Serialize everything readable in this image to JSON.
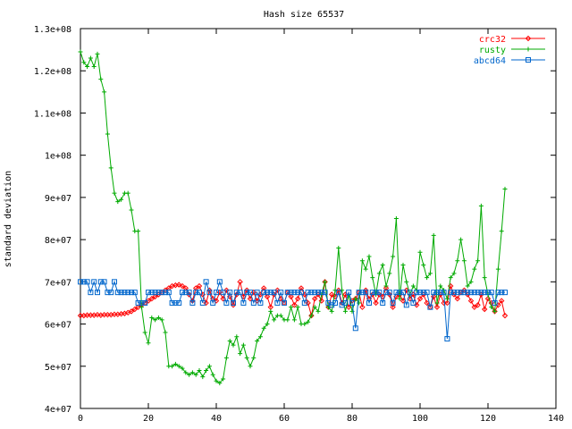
{
  "chart_data": {
    "type": "line",
    "title": "Hash size 65537",
    "xlabel": "",
    "ylabel": "standard deviation",
    "xlim": [
      0,
      140
    ],
    "ylim": [
      40000000,
      130000000
    ],
    "x_ticks": [
      0,
      20,
      40,
      60,
      80,
      100,
      120,
      140
    ],
    "x_tick_labels": [
      "0",
      "20",
      "40",
      "60",
      "80",
      "100",
      "120",
      "140"
    ],
    "y_ticks": [
      40000000,
      50000000,
      60000000,
      70000000,
      80000000,
      90000000,
      100000000,
      110000000,
      120000000,
      130000000
    ],
    "y_tick_labels": [
      "4e+07",
      "5e+07",
      "6e+07",
      "7e+07",
      "8e+07",
      "9e+07",
      "1e+08",
      "1.1e+08",
      "1.2e+08",
      "1.3e+08"
    ],
    "grid": false,
    "legend_position": "top-right",
    "series": [
      {
        "name": "crc32",
        "color": "#ff0000",
        "marker": "diamond",
        "x_start": 0,
        "values": [
          62.0,
          62.0,
          62.1,
          62.1,
          62.1,
          62.2,
          62.1,
          62.2,
          62.2,
          62.2,
          62.3,
          62.3,
          62.4,
          62.5,
          62.7,
          63.0,
          63.5,
          64.0,
          64.5,
          65.0,
          65.5,
          66.0,
          66.5,
          67.0,
          67.5,
          68.0,
          68.5,
          69.0,
          69.2,
          69.3,
          69.0,
          68.5,
          67.0,
          65.5,
          68.5,
          69.0,
          67.0,
          65.0,
          68.0,
          66.0,
          65.5,
          67.5,
          66.0,
          68.0,
          66.5,
          64.5,
          67.0,
          70.0,
          66.5,
          68.0,
          66.0,
          67.5,
          65.5,
          67.0,
          68.5,
          66.5,
          64.0,
          67.0,
          68.0,
          66.0,
          65.0,
          67.5,
          66.5,
          64.5,
          66.0,
          68.5,
          67.0,
          65.0,
          62.0,
          66.0,
          67.0,
          65.5,
          70.0,
          64.0,
          67.0,
          66.5,
          68.0,
          65.0,
          67.0,
          64.0,
          65.5,
          66.0,
          67.5,
          64.0,
          68.0,
          66.0,
          67.0,
          65.0,
          67.0,
          66.5,
          68.5,
          67.0,
          64.0,
          66.5,
          67.0,
          65.5,
          68.0,
          66.0,
          67.0,
          64.5,
          66.0,
          67.0,
          65.0,
          64.0,
          66.5,
          64.0,
          67.0,
          65.0,
          65.0,
          69.0,
          67.0,
          66.0,
          67.5,
          68.0,
          67.0,
          65.5,
          64.0,
          64.5,
          67.0,
          63.5,
          66.0,
          65.0,
          63.0,
          64.5,
          65.5,
          62.0
        ]
      },
      {
        "name": "rusty",
        "color": "#00aa00",
        "marker": "plus",
        "x_start": 0,
        "values": [
          124.5,
          122.0,
          121.0,
          123.0,
          121.0,
          124.0,
          118.0,
          115.0,
          105.0,
          97.0,
          91.0,
          89.0,
          89.5,
          91.0,
          91.0,
          87.0,
          82.0,
          82.0,
          64.0,
          58.0,
          55.5,
          61.5,
          61.0,
          61.5,
          61.0,
          58.0,
          50.0,
          50.0,
          50.5,
          50.0,
          49.5,
          48.5,
          48.0,
          48.5,
          48.0,
          49.0,
          47.5,
          49.0,
          50.0,
          48.0,
          46.5,
          46.0,
          47.0,
          52.0,
          56.0,
          55.0,
          57.0,
          53.0,
          55.0,
          52.0,
          50.0,
          52.0,
          56.0,
          57.0,
          59.0,
          60.0,
          63.0,
          61.0,
          62.0,
          62.0,
          61.0,
          61.0,
          64.0,
          61.0,
          64.0,
          60.0,
          60.0,
          60.5,
          62.0,
          64.0,
          63.0,
          67.0,
          70.0,
          64.0,
          63.0,
          68.0,
          78.0,
          68.0,
          63.0,
          67.0,
          63.0,
          66.0,
          65.0,
          75.0,
          73.0,
          76.0,
          71.0,
          67.0,
          72.0,
          74.0,
          69.0,
          72.0,
          76.0,
          85.0,
          66.0,
          74.0,
          70.0,
          67.0,
          69.0,
          68.0,
          77.0,
          74.0,
          71.0,
          72.0,
          81.0,
          65.0,
          69.0,
          68.0,
          66.0,
          71.0,
          72.0,
          75.0,
          80.0,
          75.0,
          69.0,
          70.0,
          73.0,
          75.0,
          88.0,
          71.0,
          67.0,
          64.0,
          63.0,
          73.0,
          82.0,
          92.0
        ]
      },
      {
        "name": "abcd64",
        "color": "#0066cc",
        "marker": "square",
        "x_start": 0,
        "values": [
          70.0,
          70.0,
          70.0,
          67.5,
          70.0,
          67.5,
          70.0,
          70.0,
          67.5,
          67.5,
          70.0,
          67.5,
          67.5,
          67.5,
          67.5,
          67.5,
          67.5,
          65.0,
          65.0,
          65.0,
          67.5,
          67.5,
          67.5,
          67.5,
          67.5,
          67.5,
          67.5,
          65.0,
          65.0,
          65.0,
          67.5,
          67.5,
          67.5,
          65.0,
          67.5,
          67.5,
          65.0,
          70.0,
          67.5,
          65.0,
          67.5,
          70.0,
          67.5,
          65.0,
          67.5,
          65.0,
          67.5,
          67.5,
          65.0,
          67.5,
          67.5,
          65.0,
          67.5,
          65.0,
          67.5,
          67.5,
          67.5,
          67.5,
          65.0,
          67.5,
          65.0,
          67.5,
          67.5,
          67.5,
          67.5,
          67.5,
          65.0,
          67.5,
          67.5,
          67.5,
          67.5,
          67.5,
          67.5,
          65.0,
          64.5,
          65.0,
          67.5,
          64.5,
          65.0,
          67.5,
          65.0,
          59.0,
          67.5,
          67.5,
          67.5,
          65.0,
          67.5,
          67.5,
          67.5,
          65.0,
          67.5,
          67.5,
          65.0,
          67.5,
          67.5,
          67.5,
          64.5,
          67.5,
          65.0,
          67.5,
          67.5,
          67.5,
          67.5,
          64.0,
          67.5,
          67.5,
          67.5,
          67.5,
          56.5,
          67.5,
          67.5,
          67.5,
          67.5,
          67.5,
          67.5,
          67.5,
          67.5,
          67.5,
          67.5,
          67.5,
          67.5,
          67.5,
          65.0,
          67.5,
          67.5,
          67.5
        ]
      }
    ]
  }
}
